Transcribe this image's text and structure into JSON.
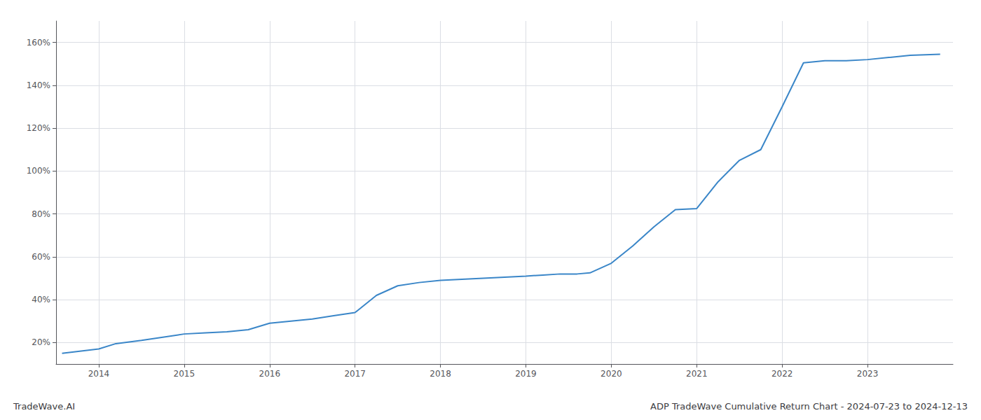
{
  "chart_data": {
    "type": "line",
    "title": "ADP TradeWave Cumulative Return Chart - 2024-07-23 to 2024-12-13",
    "annotations": [
      "TradeWave.AI"
    ],
    "x": [
      2013.57,
      2014.0,
      2014.2,
      2014.5,
      2014.75,
      2015.0,
      2015.25,
      2015.5,
      2015.75,
      2016.0,
      2016.25,
      2016.5,
      2016.75,
      2017.0,
      2017.25,
      2017.5,
      2017.75,
      2018.0,
      2018.25,
      2018.5,
      2018.75,
      2019.0,
      2019.2,
      2019.4,
      2019.6,
      2019.75,
      2020.0,
      2020.25,
      2020.5,
      2020.75,
      2021.0,
      2021.25,
      2021.5,
      2021.75,
      2022.0,
      2022.25,
      2022.5,
      2022.75,
      2023.0,
      2023.25,
      2023.5,
      2023.85
    ],
    "values": [
      15.0,
      17.0,
      19.5,
      21.0,
      22.5,
      24.0,
      24.5,
      25.0,
      26.0,
      29.0,
      30.0,
      31.0,
      32.5,
      34.0,
      42.0,
      46.5,
      48.0,
      49.0,
      49.5,
      50.0,
      50.5,
      51.0,
      51.5,
      52.0,
      52.0,
      52.5,
      57.0,
      65.0,
      74.0,
      82.0,
      82.5,
      95.0,
      105.0,
      110.0,
      130.0,
      150.5,
      151.5,
      151.5,
      152.0,
      153.0,
      154.0,
      154.5
    ],
    "color": "#3a86c8",
    "xlim": [
      2013.5,
      2024.0
    ],
    "ylim": [
      10,
      170
    ],
    "xticks": [
      2014,
      2015,
      2016,
      2017,
      2018,
      2019,
      2020,
      2021,
      2022,
      2023
    ],
    "yticks": [
      {
        "value": 20,
        "label": "20%"
      },
      {
        "value": 40,
        "label": "40%"
      },
      {
        "value": 60,
        "label": "60%"
      },
      {
        "value": 80,
        "label": "80%"
      },
      {
        "value": 100,
        "label": "100%"
      },
      {
        "value": 120,
        "label": "120%"
      },
      {
        "value": 140,
        "label": "140%"
      },
      {
        "value": 160,
        "label": "160%"
      }
    ],
    "grid": true
  }
}
